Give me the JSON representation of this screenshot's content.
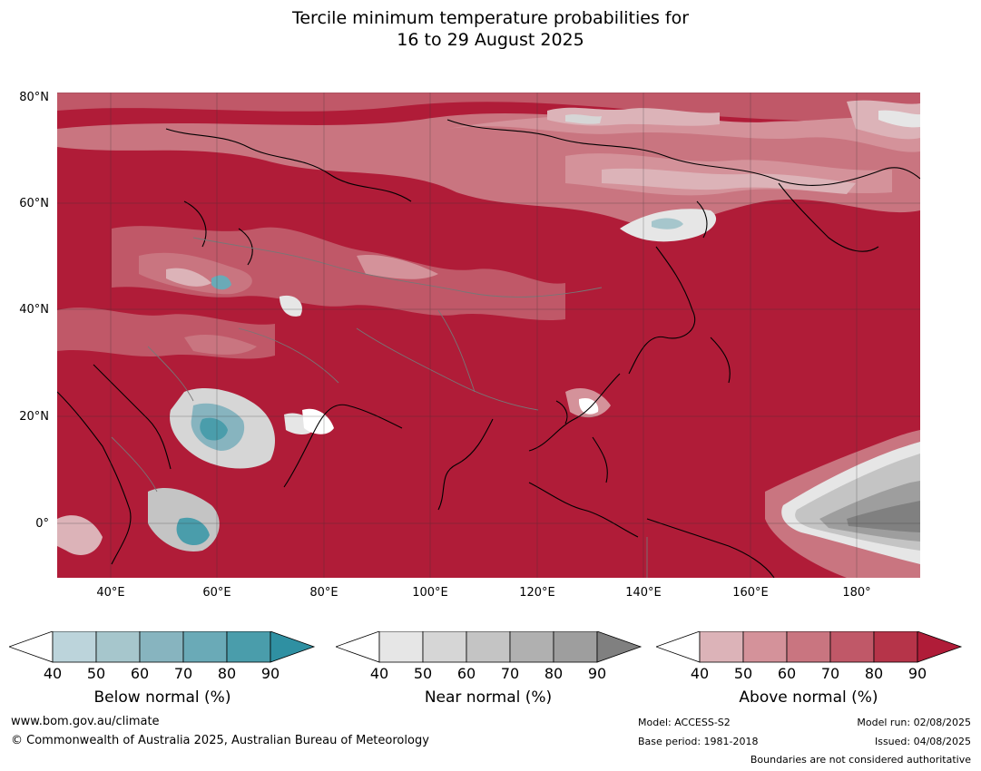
{
  "title": {
    "line1": "Tercile minimum temperature probabilities for",
    "line2": "16 to 29 August 2025"
  },
  "map": {
    "region": "Asia and Western Pacific",
    "lat_labels": [
      "80°N",
      "60°N",
      "40°N",
      "20°N",
      "0°"
    ],
    "lon_labels": [
      "40°E",
      "60°E",
      "80°E",
      "100°E",
      "120°E",
      "140°E",
      "160°E",
      "180°"
    ],
    "colors": {
      "above_normal": [
        "#ffffff",
        "#dcb3b8",
        "#d4929a",
        "#c97580",
        "#c05868",
        "#b63449",
        "#b01c38"
      ],
      "near_normal": [
        "#ffffff",
        "#e6e6e6",
        "#d6d6d6",
        "#c4c4c4",
        "#b0b0b0",
        "#9e9e9e",
        "#808080"
      ],
      "below_normal": [
        "#ffffff",
        "#bcd4db",
        "#a6c6cc",
        "#87b4bf",
        "#6aaab7",
        "#4a9dab",
        "#2f90a2"
      ]
    }
  },
  "legends": [
    {
      "id": "below",
      "title": "Below normal (%)",
      "ticks": [
        "40",
        "50",
        "60",
        "70",
        "80",
        "90"
      ],
      "colors": [
        "#ffffff",
        "#bcd4db",
        "#a6c6cc",
        "#87b4bf",
        "#6aaab7",
        "#4a9dab",
        "#2f90a2"
      ]
    },
    {
      "id": "near",
      "title": "Near normal (%)",
      "ticks": [
        "40",
        "50",
        "60",
        "70",
        "80",
        "90"
      ],
      "colors": [
        "#ffffff",
        "#e6e6e6",
        "#d6d6d6",
        "#c4c4c4",
        "#b0b0b0",
        "#9e9e9e",
        "#808080"
      ]
    },
    {
      "id": "above",
      "title": "Above normal (%)",
      "ticks": [
        "40",
        "50",
        "60",
        "70",
        "80",
        "90"
      ],
      "colors": [
        "#ffffff",
        "#dcb3b8",
        "#d4929a",
        "#c97580",
        "#c05868",
        "#b63449",
        "#b01c38"
      ]
    }
  ],
  "footer": {
    "website": "www.bom.gov.au/climate",
    "copyright": "© Commonwealth of Australia 2025, Australian Bureau of Meteorology",
    "model": "Model: ACCESS-S2",
    "base_period": "Base period: 1981-2018",
    "model_run": "Model run: 02/08/2025",
    "issued": "Issued: 04/08/2025",
    "disclaimer": "Boundaries are not considered authoritative"
  }
}
